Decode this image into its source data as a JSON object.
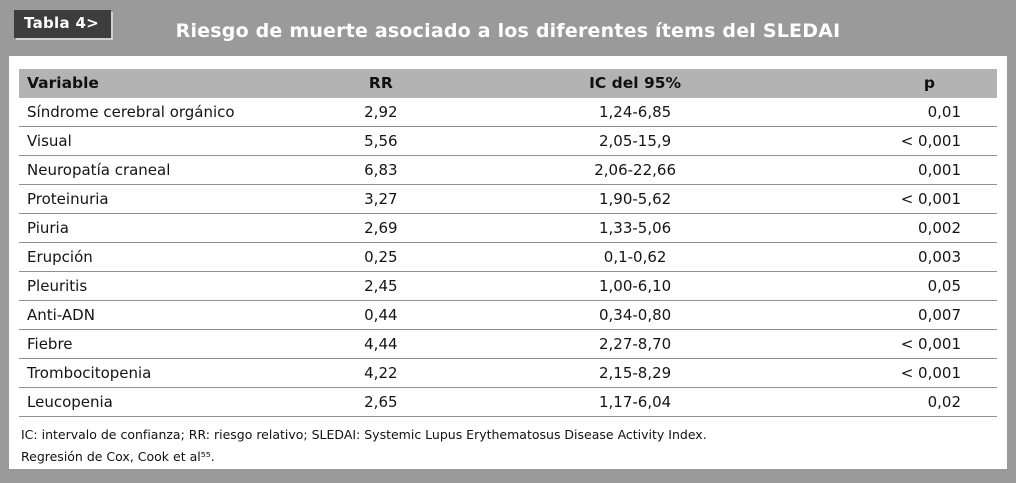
{
  "header": {
    "label": "Tabla 4>",
    "title": "Riesgo de muerte asociado a los diferentes ítems del SLEDAI"
  },
  "table": {
    "columns": {
      "variable": "Variable",
      "rr": "RR",
      "ic": "IC del 95%",
      "p": "p"
    },
    "rows": [
      {
        "variable": "Síndrome cerebral orgánico",
        "rr": "2,92",
        "ic": "1,24-6,85",
        "p": "0,01"
      },
      {
        "variable": "Visual",
        "rr": "5,56",
        "ic": "2,05-15,9",
        "p": "< 0,001"
      },
      {
        "variable": "Neuropatía craneal",
        "rr": "6,83",
        "ic": "2,06-22,66",
        "p": "0,001"
      },
      {
        "variable": "Proteinuria",
        "rr": "3,27",
        "ic": "1,90-5,62",
        "p": "< 0,001"
      },
      {
        "variable": "Piuria",
        "rr": "2,69",
        "ic": "1,33-5,06",
        "p": "0,002"
      },
      {
        "variable": "Erupción",
        "rr": "0,25",
        "ic": "0,1-0,62",
        "p": "0,003"
      },
      {
        "variable": "Pleuritis",
        "rr": "2,45",
        "ic": "1,00-6,10",
        "p": "0,05"
      },
      {
        "variable": "Anti-ADN",
        "rr": "0,44",
        "ic": "0,34-0,80",
        "p": "0,007"
      },
      {
        "variable": "Fiebre",
        "rr": "4,44",
        "ic": "2,27-8,70",
        "p": "< 0,001"
      },
      {
        "variable": "Trombocitopenia",
        "rr": "4,22",
        "ic": "2,15-8,29",
        "p": "< 0,001"
      },
      {
        "variable": "Leucopenia",
        "rr": "2,65",
        "ic": "1,17-6,04",
        "p": "0,02"
      }
    ]
  },
  "footnotes": [
    "IC: intervalo de confianza; RR: riesgo relativo; SLEDAI: Systemic Lupus Erythematosus Disease Activity Index.",
    "Regresión de Cox, Cook et al⁵⁵."
  ],
  "colors": {
    "frame": "#9a9a9a",
    "header_row": "#b3b3b3",
    "badge_background": "#3d3d3d",
    "title_text": "#ffffff",
    "body_text": "#141414",
    "row_divider": "#8f8f8f"
  }
}
